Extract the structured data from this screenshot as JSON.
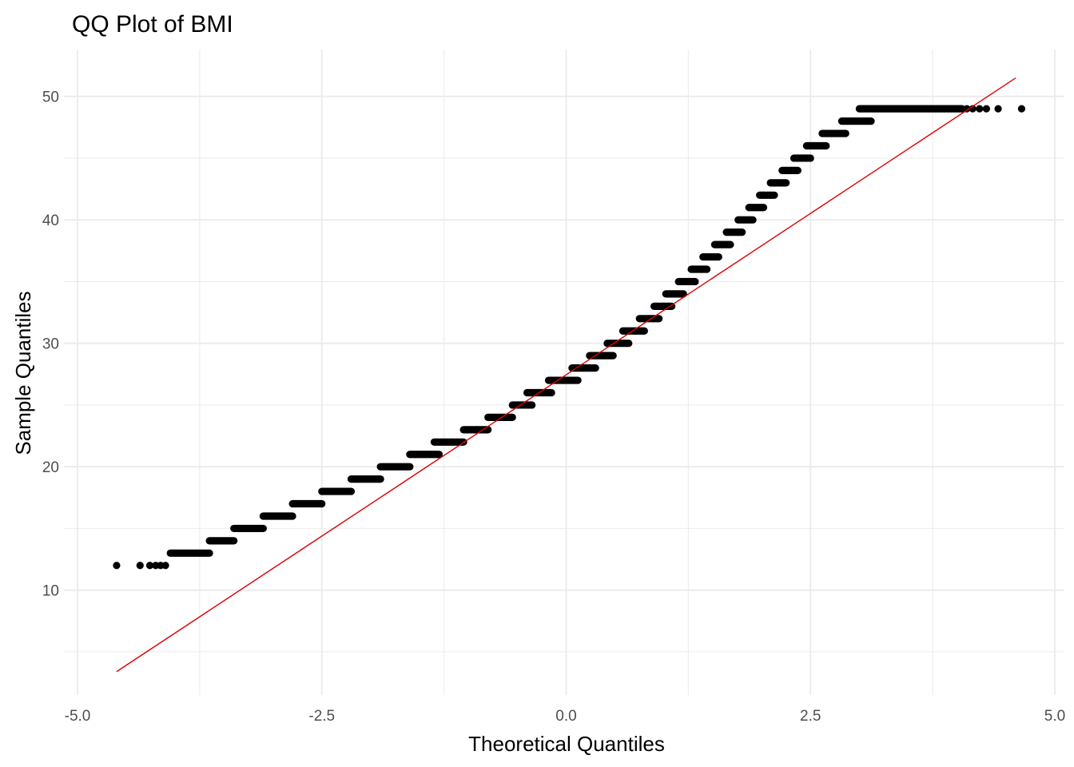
{
  "chart_data": {
    "type": "scatter",
    "title": "QQ Plot of BMI",
    "xlabel": "Theoretical Quantiles",
    "ylabel": "Sample Quantiles",
    "xlim": [
      -5.0,
      5.0
    ],
    "ylim": [
      1.5,
      53.8
    ],
    "x_ticks": [
      -5.0,
      -2.5,
      0.0,
      2.5,
      5.0
    ],
    "x_tick_labels": [
      "-5.0",
      "-2.5",
      "0.0",
      "2.5",
      "5.0"
    ],
    "y_ticks": [
      10,
      20,
      30,
      40,
      50
    ],
    "y_tick_labels": [
      "10",
      "20",
      "30",
      "40",
      "50"
    ],
    "grid": true,
    "legend": "none",
    "point_color": "#000000",
    "line_color": "#dd0000",
    "grid_color": "#ebebeb",
    "points": [
      {
        "x": -4.6,
        "y": 12
      },
      {
        "x": -4.36,
        "y": 12
      },
      {
        "x": -4.26,
        "y": 12
      },
      {
        "x": -4.2,
        "y": 12
      },
      {
        "x": -4.15,
        "y": 12
      },
      {
        "x": -4.1,
        "y": 12
      }
    ],
    "segments": [
      {
        "y": 13,
        "x_start": -4.05,
        "x_end": -3.65
      },
      {
        "y": 14,
        "x_start": -3.65,
        "x_end": -3.4
      },
      {
        "y": 15,
        "x_start": -3.4,
        "x_end": -3.1
      },
      {
        "y": 16,
        "x_start": -3.1,
        "x_end": -2.8
      },
      {
        "y": 17,
        "x_start": -2.8,
        "x_end": -2.5
      },
      {
        "y": 18,
        "x_start": -2.5,
        "x_end": -2.2
      },
      {
        "y": 19,
        "x_start": -2.2,
        "x_end": -1.9
      },
      {
        "y": 20,
        "x_start": -1.9,
        "x_end": -1.6
      },
      {
        "y": 21,
        "x_start": -1.6,
        "x_end": -1.3
      },
      {
        "y": 22,
        "x_start": -1.35,
        "x_end": -1.05
      },
      {
        "y": 23,
        "x_start": -1.05,
        "x_end": -0.8
      },
      {
        "y": 24,
        "x_start": -0.8,
        "x_end": -0.55
      },
      {
        "y": 25,
        "x_start": -0.55,
        "x_end": -0.35
      },
      {
        "y": 26,
        "x_start": -0.4,
        "x_end": -0.15
      },
      {
        "y": 27,
        "x_start": -0.18,
        "x_end": 0.12
      },
      {
        "y": 28,
        "x_start": 0.06,
        "x_end": 0.3
      },
      {
        "y": 29,
        "x_start": 0.24,
        "x_end": 0.48
      },
      {
        "y": 30,
        "x_start": 0.42,
        "x_end": 0.64
      },
      {
        "y": 31,
        "x_start": 0.58,
        "x_end": 0.8
      },
      {
        "y": 32,
        "x_start": 0.75,
        "x_end": 0.95
      },
      {
        "y": 33,
        "x_start": 0.9,
        "x_end": 1.08
      },
      {
        "y": 34,
        "x_start": 1.02,
        "x_end": 1.2
      },
      {
        "y": 35,
        "x_start": 1.15,
        "x_end": 1.32
      },
      {
        "y": 36,
        "x_start": 1.28,
        "x_end": 1.44
      },
      {
        "y": 37,
        "x_start": 1.4,
        "x_end": 1.56
      },
      {
        "y": 38,
        "x_start": 1.52,
        "x_end": 1.68
      },
      {
        "y": 39,
        "x_start": 1.64,
        "x_end": 1.8
      },
      {
        "y": 40,
        "x_start": 1.76,
        "x_end": 1.91
      },
      {
        "y": 41,
        "x_start": 1.87,
        "x_end": 2.02
      },
      {
        "y": 42,
        "x_start": 1.98,
        "x_end": 2.13
      },
      {
        "y": 43,
        "x_start": 2.09,
        "x_end": 2.25
      },
      {
        "y": 44,
        "x_start": 2.21,
        "x_end": 2.37
      },
      {
        "y": 45,
        "x_start": 2.33,
        "x_end": 2.5
      },
      {
        "y": 46,
        "x_start": 2.46,
        "x_end": 2.66
      },
      {
        "y": 47,
        "x_start": 2.62,
        "x_end": 2.86
      },
      {
        "y": 48,
        "x_start": 2.82,
        "x_end": 3.12
      },
      {
        "y": 49,
        "x_start": 3.0,
        "x_end": 4.05
      }
    ],
    "outlier_points": [
      {
        "x": 4.1,
        "y": 49
      },
      {
        "x": 4.16,
        "y": 49
      },
      {
        "x": 4.23,
        "y": 49
      },
      {
        "x": 4.3,
        "y": 49
      },
      {
        "x": 4.42,
        "y": 49
      },
      {
        "x": 4.66,
        "y": 49
      }
    ],
    "reference_line": {
      "x_start": -4.6,
      "y_start": 3.4,
      "x_end": 4.6,
      "y_end": 51.5
    }
  }
}
